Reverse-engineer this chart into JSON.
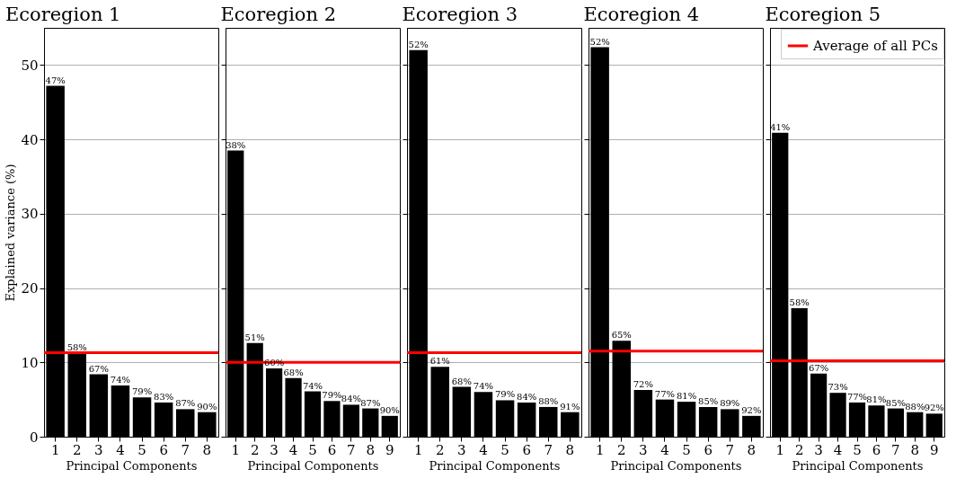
{
  "chart_data": [
    {
      "type": "bar",
      "title": "Ecoregion 1",
      "xlabel": "Principal Components",
      "ylabel": "Explained variance (%)",
      "categories": [
        "1",
        "2",
        "3",
        "4",
        "5",
        "6",
        "7",
        "8"
      ],
      "values": [
        47.2,
        11.2,
        8.4,
        6.9,
        5.3,
        4.6,
        3.7,
        3.3
      ],
      "color": "#000000",
      "ylim": [
        0,
        55
      ],
      "yticks": [
        0,
        10,
        20,
        30,
        40,
        50
      ],
      "grid": "y",
      "annotations": [
        {
          "text": "47%",
          "x": "1",
          "y": 47.2
        },
        {
          "text": "58%",
          "x": "2",
          "y": 11.2
        },
        {
          "text": "67%",
          "x": "3",
          "y": 8.4
        },
        {
          "text": "74%",
          "x": "4",
          "y": 6.9
        },
        {
          "text": "79%",
          "x": "5",
          "y": 5.3
        },
        {
          "text": "83%",
          "x": "6",
          "y": 4.6
        },
        {
          "text": "87%",
          "x": "7",
          "y": 3.7
        },
        {
          "text": "90%",
          "x": "8",
          "y": 3.3
        }
      ],
      "ref_lines": [
        {
          "axis": "y",
          "value": 11.3,
          "color": "#ff0000"
        }
      ]
    },
    {
      "type": "bar",
      "title": "Ecoregion 2",
      "xlabel": "Principal Components",
      "categories": [
        "1",
        "2",
        "3",
        "4",
        "5",
        "6",
        "7",
        "8",
        "9"
      ],
      "values": [
        38.5,
        12.6,
        9.2,
        7.9,
        6.1,
        4.8,
        4.3,
        3.8,
        2.8
      ],
      "color": "#000000",
      "ylim": [
        0,
        55
      ],
      "yticks": [
        0,
        10,
        20,
        30,
        40,
        50
      ],
      "grid": "y",
      "tick_labels": "x",
      "annotations": [
        {
          "text": "38%",
          "x": "1",
          "y": 38.5
        },
        {
          "text": "51%",
          "x": "2",
          "y": 12.6
        },
        {
          "text": "60%",
          "x": "3",
          "y": 9.2
        },
        {
          "text": "68%",
          "x": "4",
          "y": 7.9
        },
        {
          "text": "74%",
          "x": "5",
          "y": 6.1
        },
        {
          "text": "79%",
          "x": "6",
          "y": 4.8
        },
        {
          "text": "84%",
          "x": "7",
          "y": 4.3
        },
        {
          "text": "87%",
          "x": "8",
          "y": 3.8
        },
        {
          "text": "90%",
          "x": "9",
          "y": 2.8
        }
      ],
      "ref_lines": [
        {
          "axis": "y",
          "value": 10.0,
          "color": "#ff0000"
        }
      ]
    },
    {
      "type": "bar",
      "title": "Ecoregion 3",
      "xlabel": "Principal Components",
      "categories": [
        "1",
        "2",
        "3",
        "4",
        "5",
        "6",
        "7",
        "8"
      ],
      "values": [
        52.0,
        9.4,
        6.7,
        6.0,
        4.9,
        4.6,
        4.0,
        3.3
      ],
      "color": "#000000",
      "ylim": [
        0,
        55
      ],
      "yticks": [
        0,
        10,
        20,
        30,
        40,
        50
      ],
      "grid": "y",
      "tick_labels": "x",
      "annotations": [
        {
          "text": "52%",
          "x": "1",
          "y": 52.0
        },
        {
          "text": "61%",
          "x": "2",
          "y": 9.4
        },
        {
          "text": "68%",
          "x": "3",
          "y": 6.7
        },
        {
          "text": "74%",
          "x": "4",
          "y": 6.0
        },
        {
          "text": "79%",
          "x": "5",
          "y": 4.9
        },
        {
          "text": "84%",
          "x": "6",
          "y": 4.6
        },
        {
          "text": "88%",
          "x": "7",
          "y": 4.0
        },
        {
          "text": "91%",
          "x": "8",
          "y": 3.3
        }
      ],
      "ref_lines": [
        {
          "axis": "y",
          "value": 11.3,
          "color": "#ff0000"
        }
      ]
    },
    {
      "type": "bar",
      "title": "Ecoregion 4",
      "xlabel": "Principal Components",
      "categories": [
        "1",
        "2",
        "3",
        "4",
        "5",
        "6",
        "7",
        "8"
      ],
      "values": [
        52.4,
        12.9,
        6.3,
        5.0,
        4.7,
        4.0,
        3.7,
        2.8
      ],
      "color": "#000000",
      "ylim": [
        0,
        55
      ],
      "yticks": [
        0,
        10,
        20,
        30,
        40,
        50
      ],
      "grid": "y",
      "tick_labels": "x",
      "annotations": [
        {
          "text": "52%",
          "x": "1",
          "y": 52.4
        },
        {
          "text": "65%",
          "x": "2",
          "y": 12.9
        },
        {
          "text": "72%",
          "x": "3",
          "y": 6.3
        },
        {
          "text": "77%",
          "x": "4",
          "y": 5.0
        },
        {
          "text": "81%",
          "x": "5",
          "y": 4.7
        },
        {
          "text": "85%",
          "x": "6",
          "y": 4.0
        },
        {
          "text": "89%",
          "x": "7",
          "y": 3.7
        },
        {
          "text": "92%",
          "x": "8",
          "y": 2.8
        }
      ],
      "ref_lines": [
        {
          "axis": "y",
          "value": 11.5,
          "color": "#ff0000"
        }
      ]
    },
    {
      "type": "bar",
      "title": "Ecoregion 5",
      "xlabel": "Principal Components",
      "categories": [
        "1",
        "2",
        "3",
        "4",
        "5",
        "6",
        "7",
        "8",
        "9"
      ],
      "values": [
        40.9,
        17.3,
        8.5,
        5.9,
        4.6,
        4.2,
        3.8,
        3.3,
        3.1
      ],
      "color": "#000000",
      "ylim": [
        0,
        55
      ],
      "yticks": [
        0,
        10,
        20,
        30,
        40,
        50
      ],
      "grid": "y",
      "tick_labels": "x",
      "legend": "top right",
      "annotations": [
        {
          "text": "41%",
          "x": "1",
          "y": 40.9
        },
        {
          "text": "58%",
          "x": "2",
          "y": 17.3
        },
        {
          "text": "67%",
          "x": "3",
          "y": 8.5
        },
        {
          "text": "73%",
          "x": "4",
          "y": 5.9
        },
        {
          "text": "77%",
          "x": "5",
          "y": 4.6
        },
        {
          "text": "81%",
          "x": "6",
          "y": 4.2
        },
        {
          "text": "85%",
          "x": "7",
          "y": 3.8
        },
        {
          "text": "88%",
          "x": "8",
          "y": 3.3
        },
        {
          "text": "92%",
          "x": "9",
          "y": 3.1
        }
      ],
      "ref_lines": [
        {
          "axis": "y",
          "value": 10.2,
          "label": "Average of all PCs",
          "color": "#ff0000"
        }
      ]
    }
  ]
}
